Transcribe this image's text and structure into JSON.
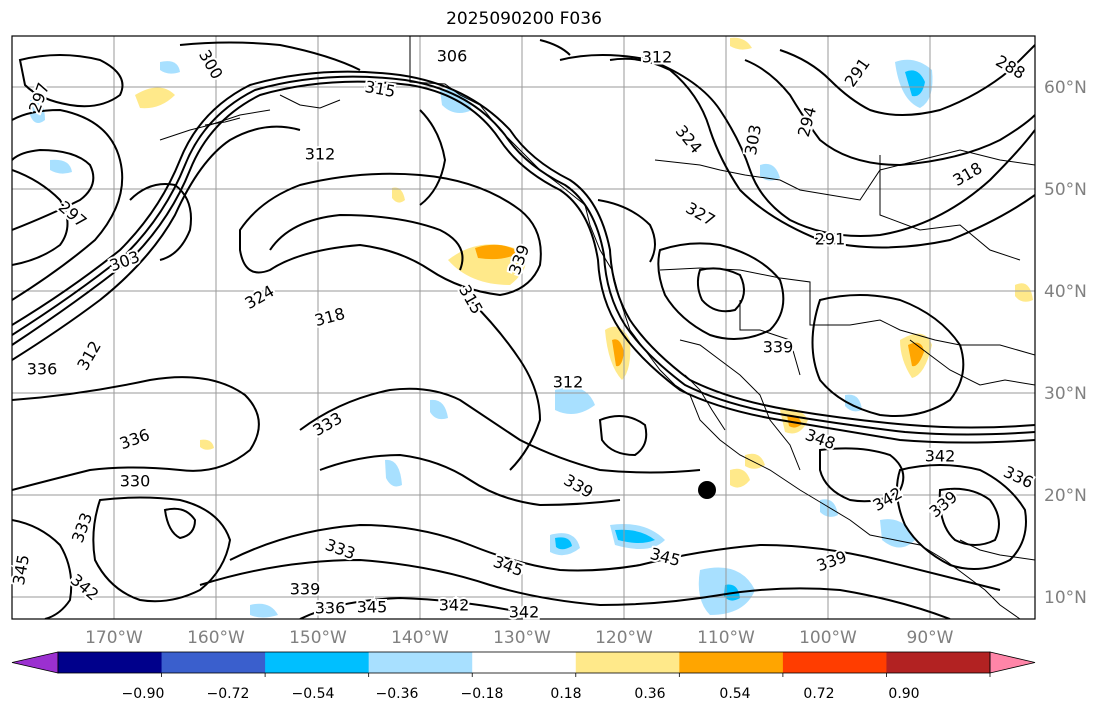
{
  "title": "2025090200 F036",
  "map": {
    "lat_labels": [
      "60°N",
      "50°N",
      "40°N",
      "30°N",
      "20°N",
      "10°N"
    ],
    "lon_labels": [
      "170°W",
      "160°W",
      "150°W",
      "140°W",
      "130°W",
      "120°W",
      "110°W",
      "100°W",
      "90°W"
    ],
    "gridlines": true
  },
  "colorbar": {
    "extend": "both",
    "tick_labels": [
      "−0.90",
      "−0.72",
      "−0.54",
      "−0.36",
      "−0.18",
      "0.18",
      "0.36",
      "0.54",
      "0.72",
      "0.90"
    ],
    "colors": [
      "#9b30d0",
      "#00008b",
      "#3a5fcd",
      "#00bfff",
      "#a8e0ff",
      "#ffffff",
      "#ffe98a",
      "#ffa500",
      "#ff3d00",
      "#b22222",
      "#ff85a8"
    ]
  },
  "contour_labels": [
    "306",
    "312",
    "297",
    "300",
    "315",
    "291",
    "288",
    "303",
    "294",
    "324",
    "312",
    "297",
    "303",
    "336",
    "312",
    "327",
    "324",
    "318",
    "291",
    "318",
    "315",
    "339",
    "333",
    "312",
    "339",
    "336",
    "339",
    "333",
    "345",
    "330",
    "345",
    "342",
    "348",
    "336",
    "333",
    "345",
    "342",
    "339",
    "345",
    "342",
    "342",
    "336",
    "339",
    "342",
    "339"
  ],
  "contour_colors": {
    "line": "#000000",
    "coast": "#000000"
  }
}
